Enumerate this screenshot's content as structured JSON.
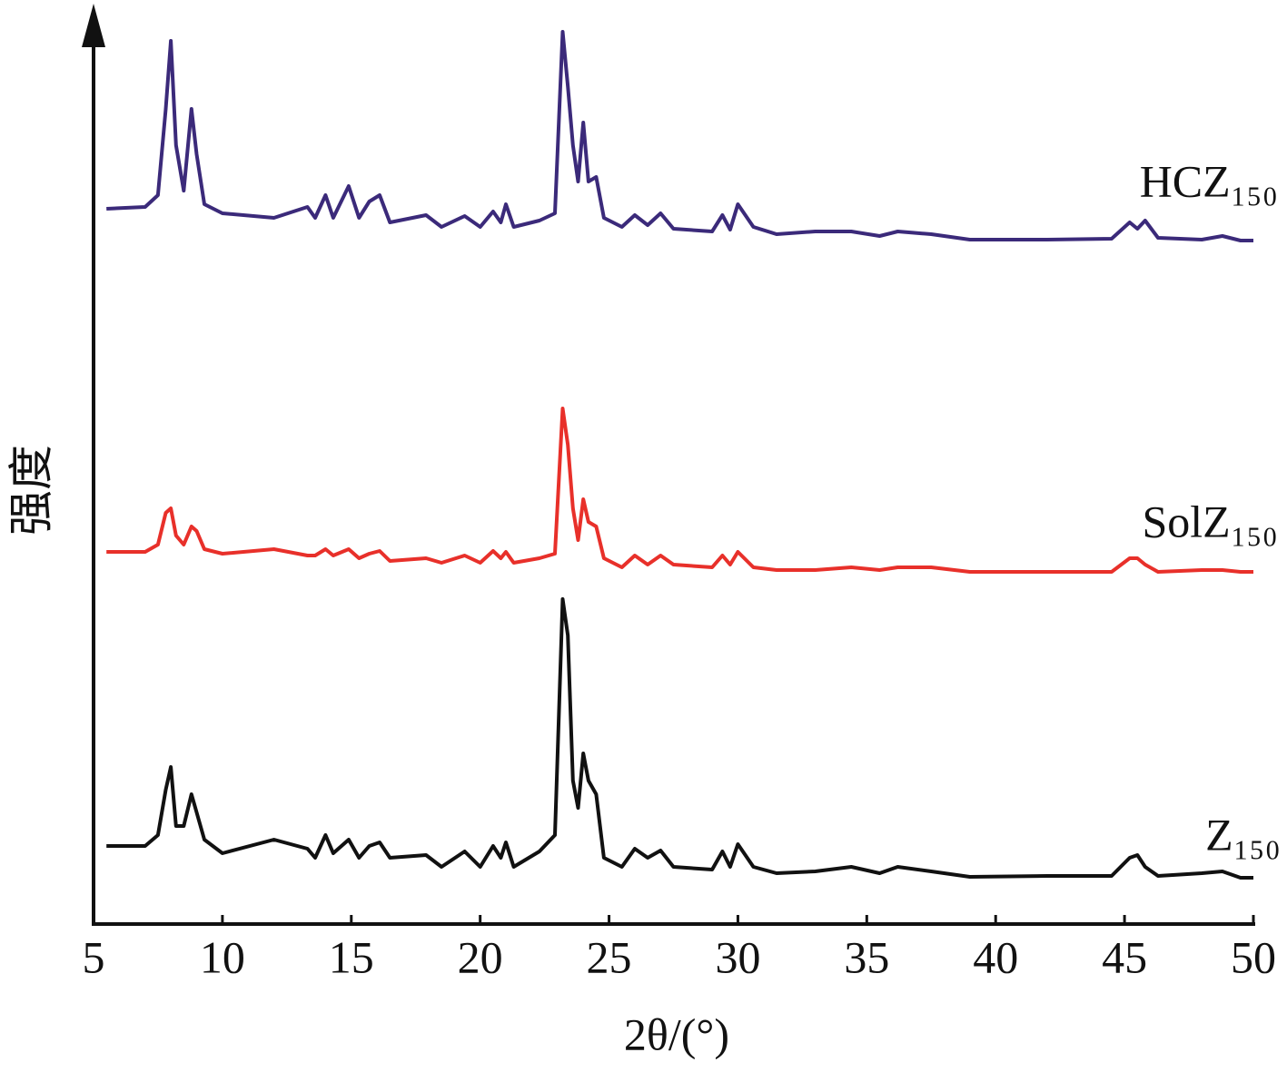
{
  "chart_data": {
    "type": "line",
    "x_label": "2θ/(°)",
    "y_label": "强度",
    "xlim": [
      5,
      50
    ],
    "xticks": [
      5,
      10,
      15,
      20,
      25,
      30,
      35,
      40,
      45,
      50
    ],
    "ylim": [
      0,
      100
    ],
    "x": [
      5.5,
      7.0,
      7.5,
      7.8,
      8.0,
      8.2,
      8.5,
      8.8,
      9.0,
      9.3,
      10,
      12,
      13.3,
      13.6,
      14.0,
      14.3,
      14.9,
      15.3,
      15.7,
      16.1,
      16.5,
      17.9,
      18.5,
      19.4,
      20.0,
      20.5,
      20.8,
      21.0,
      21.3,
      22.3,
      22.9,
      23.2,
      23.4,
      23.6,
      23.8,
      24.0,
      24.2,
      24.5,
      24.8,
      25.5,
      26.0,
      26.5,
      27.0,
      27.5,
      29.0,
      29.4,
      29.7,
      30.0,
      30.6,
      31.5,
      33,
      34.4,
      35.5,
      36.2,
      37.5,
      39,
      42,
      44.5,
      45.2,
      45.5,
      45.8,
      46.3,
      48,
      48.8,
      49.5,
      50
    ],
    "series": [
      {
        "name": "HCZ₁₅₀",
        "color": "#3b2a7a",
        "values": [
          78.8,
          79.0,
          80.3,
          89.8,
          97.3,
          85.8,
          80.8,
          89.8,
          84.8,
          79.3,
          78.3,
          77.8,
          79.0,
          77.8,
          80.3,
          77.8,
          81.3,
          77.8,
          79.6,
          80.3,
          77.3,
          78.1,
          76.8,
          78.0,
          76.8,
          78.5,
          77.3,
          79.3,
          76.8,
          77.5,
          78.3,
          98.3,
          92.3,
          85.8,
          81.8,
          88.3,
          81.8,
          82.3,
          77.8,
          76.8,
          78.1,
          77.0,
          78.3,
          76.6,
          76.3,
          78.1,
          76.5,
          79.3,
          76.8,
          76.0,
          76.3,
          76.3,
          75.8,
          76.3,
          76.0,
          75.4,
          75.4,
          75.5,
          77.3,
          76.6,
          77.5,
          75.6,
          75.4,
          75.8,
          75.3,
          75.3
        ]
      },
      {
        "name": "SolZ₁₅₀",
        "color": "#e8302a",
        "values": [
          41.0,
          41.0,
          41.8,
          45.3,
          45.8,
          42.8,
          41.8,
          43.8,
          43.3,
          41.3,
          40.8,
          41.3,
          40.6,
          40.6,
          41.3,
          40.6,
          41.3,
          40.3,
          40.8,
          41.1,
          40.0,
          40.3,
          39.8,
          40.6,
          39.8,
          41.1,
          40.3,
          41.0,
          39.8,
          40.3,
          40.8,
          56.8,
          52.8,
          45.8,
          42.3,
          46.8,
          44.3,
          43.8,
          40.3,
          39.3,
          40.6,
          39.6,
          40.6,
          39.6,
          39.3,
          40.6,
          39.6,
          41.0,
          39.3,
          39.0,
          39.0,
          39.3,
          39.0,
          39.3,
          39.3,
          38.8,
          38.8,
          38.8,
          40.3,
          40.3,
          39.6,
          38.8,
          39.0,
          39.0,
          38.8,
          38.8
        ]
      },
      {
        "name": "Z₁₅₀",
        "color": "#111111",
        "values": [
          8.6,
          8.6,
          9.8,
          14.8,
          17.3,
          10.8,
          10.8,
          14.3,
          12.3,
          9.3,
          7.8,
          9.3,
          8.3,
          7.3,
          9.8,
          7.8,
          9.3,
          7.3,
          8.6,
          9.0,
          7.3,
          7.6,
          6.3,
          8.0,
          6.3,
          8.6,
          7.3,
          9.0,
          6.3,
          8.0,
          9.8,
          35.8,
          31.8,
          15.8,
          12.8,
          18.8,
          15.8,
          14.3,
          7.3,
          6.3,
          8.3,
          7.3,
          8.1,
          6.3,
          6.0,
          8.0,
          6.3,
          8.8,
          6.3,
          5.6,
          5.8,
          6.3,
          5.6,
          6.3,
          5.8,
          5.2,
          5.3,
          5.3,
          7.3,
          7.6,
          6.3,
          5.3,
          5.6,
          5.8,
          5.1,
          5.1
        ]
      }
    ]
  }
}
